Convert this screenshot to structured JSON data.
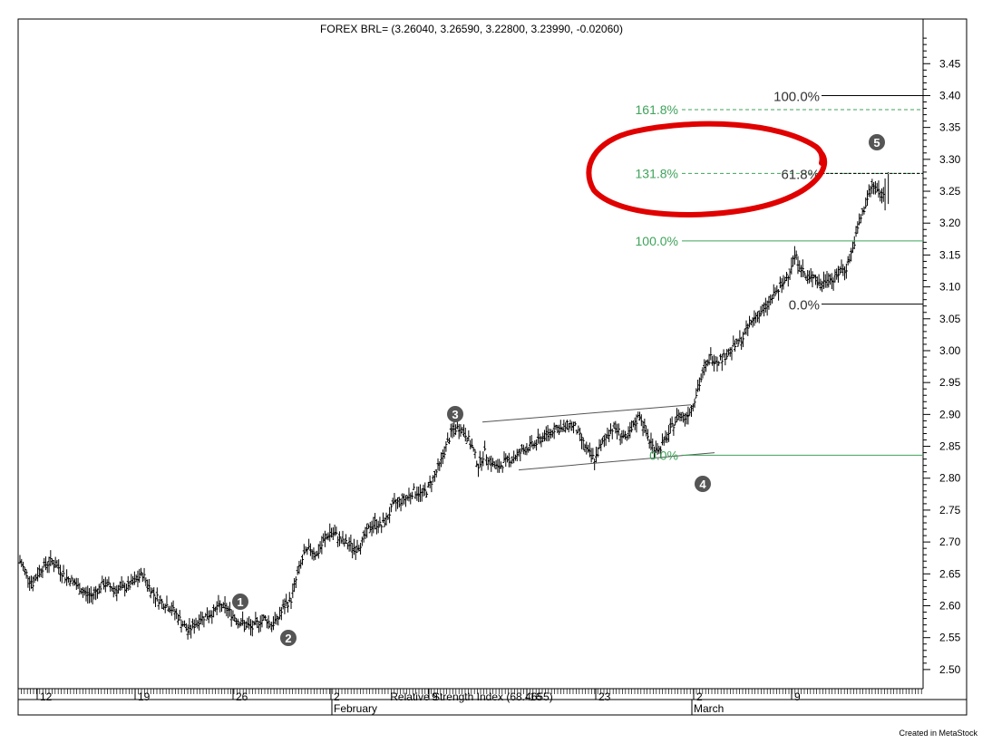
{
  "chart_title": "FOREX BRL= (3.26040, 3.26590, 3.22800, 3.23990, -0.02060)",
  "footer_note": "Created in MetaStock",
  "overlay_label": "Relative Strength Index (68.4655)",
  "chart_data": {
    "type": "ohlc",
    "title": "FOREX BRL= (3.26040, 3.26590, 3.22800, 3.23990, -0.02060)",
    "xlabel": "",
    "ylabel": "",
    "ylim": [
      2.47,
      3.52
    ],
    "grid": false,
    "y_ticks": [
      "2.50",
      "2.55",
      "2.60",
      "2.65",
      "2.70",
      "2.75",
      "2.80",
      "2.85",
      "2.90",
      "2.95",
      "3.00",
      "3.05",
      "3.10",
      "3.15",
      "3.20",
      "3.25",
      "3.30",
      "3.35",
      "3.40",
      "3.45"
    ],
    "x_day_labels": [
      "12",
      "19",
      "26",
      "2",
      "9",
      "16",
      "23",
      "2",
      "9"
    ],
    "x_month_labels": [
      "February",
      "March"
    ],
    "series": [
      {
        "values": [
          [
            0,
            2.67
          ],
          [
            4,
            2.65
          ],
          [
            8,
            2.635
          ],
          [
            12,
            2.655
          ],
          [
            16,
            2.665
          ],
          [
            20,
            2.67
          ],
          [
            24,
            2.66
          ],
          [
            28,
            2.645
          ],
          [
            32,
            2.64
          ],
          [
            36,
            2.63
          ],
          [
            40,
            2.62
          ],
          [
            44,
            2.615
          ],
          [
            48,
            2.625
          ],
          [
            52,
            2.635
          ],
          [
            56,
            2.63
          ],
          [
            60,
            2.625
          ],
          [
            64,
            2.628
          ],
          [
            68,
            2.632
          ],
          [
            72,
            2.64
          ],
          [
            76,
            2.65
          ],
          [
            80,
            2.63
          ],
          [
            84,
            2.615
          ],
          [
            88,
            2.605
          ],
          [
            92,
            2.6
          ],
          [
            96,
            2.59
          ],
          [
            100,
            2.575
          ],
          [
            104,
            2.56
          ],
          [
            108,
            2.57
          ],
          [
            112,
            2.58
          ],
          [
            116,
            2.585
          ],
          [
            120,
            2.59
          ],
          [
            124,
            2.6
          ],
          [
            128,
            2.595
          ],
          [
            132,
            2.585
          ],
          [
            136,
            2.575
          ],
          [
            140,
            2.57
          ],
          [
            144,
            2.565
          ],
          [
            148,
            2.575
          ],
          [
            152,
            2.58
          ],
          [
            156,
            2.57
          ],
          [
            160,
            2.58
          ],
          [
            164,
            2.6
          ],
          [
            168,
            2.61
          ],
          [
            172,
            2.65
          ],
          [
            176,
            2.68
          ],
          [
            180,
            2.69
          ],
          [
            184,
            2.68
          ],
          [
            188,
            2.7
          ],
          [
            192,
            2.715
          ],
          [
            196,
            2.71
          ],
          [
            200,
            2.7
          ],
          [
            204,
            2.695
          ],
          [
            208,
            2.69
          ],
          [
            212,
            2.7
          ],
          [
            216,
            2.72
          ],
          [
            220,
            2.73
          ],
          [
            224,
            2.725
          ],
          [
            228,
            2.74
          ],
          [
            232,
            2.76
          ],
          [
            236,
            2.765
          ],
          [
            240,
            2.77
          ],
          [
            244,
            2.78
          ],
          [
            248,
            2.775
          ],
          [
            252,
            2.78
          ],
          [
            256,
            2.8
          ],
          [
            260,
            2.82
          ],
          [
            264,
            2.85
          ],
          [
            268,
            2.875
          ],
          [
            272,
            2.88
          ],
          [
            276,
            2.87
          ],
          [
            280,
            2.85
          ],
          [
            284,
            2.82
          ],
          [
            288,
            2.84
          ],
          [
            292,
            2.825
          ],
          [
            296,
            2.815
          ],
          [
            300,
            2.825
          ],
          [
            304,
            2.83
          ],
          [
            308,
            2.835
          ],
          [
            312,
            2.845
          ],
          [
            316,
            2.85
          ],
          [
            320,
            2.855
          ],
          [
            324,
            2.865
          ],
          [
            328,
            2.87
          ],
          [
            332,
            2.88
          ],
          [
            336,
            2.875
          ],
          [
            340,
            2.885
          ],
          [
            344,
            2.88
          ],
          [
            348,
            2.86
          ],
          [
            352,
            2.84
          ],
          [
            356,
            2.83
          ],
          [
            360,
            2.85
          ],
          [
            364,
            2.87
          ],
          [
            368,
            2.88
          ],
          [
            372,
            2.87
          ],
          [
            376,
            2.86
          ],
          [
            380,
            2.88
          ],
          [
            384,
            2.9
          ],
          [
            388,
            2.87
          ],
          [
            392,
            2.85
          ],
          [
            396,
            2.845
          ],
          [
            400,
            2.86
          ],
          [
            404,
            2.88
          ],
          [
            408,
            2.9
          ],
          [
            412,
            2.895
          ],
          [
            416,
            2.91
          ],
          [
            420,
            2.94
          ],
          [
            424,
            2.97
          ],
          [
            428,
            2.99
          ],
          [
            432,
            2.985
          ],
          [
            436,
            2.99
          ],
          [
            440,
            3.0
          ],
          [
            444,
            3.01
          ],
          [
            448,
            3.02
          ],
          [
            452,
            3.04
          ],
          [
            456,
            3.055
          ],
          [
            460,
            3.06
          ],
          [
            464,
            3.075
          ],
          [
            468,
            3.09
          ],
          [
            472,
            3.1
          ],
          [
            476,
            3.12
          ],
          [
            480,
            3.15
          ],
          [
            484,
            3.13
          ],
          [
            488,
            3.11
          ],
          [
            492,
            3.12
          ],
          [
            496,
            3.1
          ],
          [
            500,
            3.115
          ],
          [
            504,
            3.11
          ],
          [
            508,
            3.125
          ],
          [
            512,
            3.13
          ],
          [
            516,
            3.16
          ],
          [
            520,
            3.2
          ],
          [
            524,
            3.23
          ],
          [
            528,
            3.26
          ],
          [
            532,
            3.25
          ],
          [
            536,
            3.24
          ]
        ]
      }
    ],
    "annotations": {
      "wave_labels": [
        "1",
        "2",
        "3",
        "4",
        "5"
      ],
      "fib_green_labels": [
        "161.8%",
        "131.8%",
        "100.0%",
        "0.0%"
      ],
      "fib_gray_labels": [
        "100.0%",
        "61.8%",
        "0.0%"
      ],
      "fib_levels_green": [
        3.378,
        3.278,
        3.172,
        2.836
      ],
      "fib_levels_gray": [
        3.4,
        3.278,
        3.073
      ]
    }
  }
}
